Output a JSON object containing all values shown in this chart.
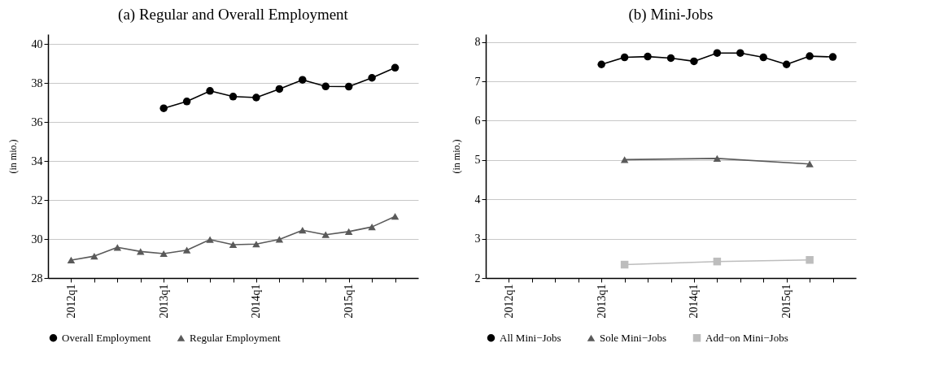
{
  "chart_data": [
    {
      "type": "line",
      "title": "(a) Regular and Overall Employment",
      "ylabel": "(in mio.)",
      "categories": [
        "2012q1",
        null,
        null,
        null,
        "2013q1",
        null,
        null,
        null,
        "2014q1",
        null,
        null,
        null,
        "2015q1",
        null,
        null
      ],
      "ylim": [
        28,
        40.5
      ],
      "yticks": [
        28,
        30,
        32,
        34,
        36,
        38,
        40
      ],
      "grid": "y",
      "legend": "bottom",
      "line_style": "solid",
      "series": [
        {
          "name": "Overall Employment",
          "color": "#000000",
          "marker": "circle",
          "values": [
            null,
            null,
            null,
            null,
            36.7,
            37.05,
            37.59,
            37.3,
            37.25,
            37.69,
            38.16,
            37.82,
            37.81,
            38.26,
            38.78
          ]
        },
        {
          "name": "Regular Employment",
          "color": "#5a5a5a",
          "marker": "triangle",
          "values": [
            28.92,
            29.12,
            29.57,
            29.36,
            29.25,
            29.43,
            29.97,
            29.71,
            29.74,
            29.98,
            30.45,
            30.22,
            30.38,
            30.62,
            31.16
          ]
        }
      ]
    },
    {
      "type": "line",
      "title": "(b) Mini-Jobs",
      "ylabel": "(in mio.)",
      "categories": [
        "2012q1",
        null,
        null,
        null,
        "2013q1",
        null,
        null,
        null,
        "2014q1",
        null,
        null,
        null,
        "2015q1",
        null,
        null
      ],
      "ylim": [
        2,
        8.2
      ],
      "yticks": [
        2,
        3,
        4,
        5,
        6,
        7,
        8
      ],
      "grid": "y",
      "legend": "bottom",
      "line_style": "solid",
      "series": [
        {
          "name": "All Mini−Jobs",
          "color": "#000000",
          "marker": "circle",
          "values": [
            null,
            null,
            null,
            null,
            7.43,
            7.61,
            7.63,
            7.59,
            7.51,
            7.72,
            7.72,
            7.61,
            7.43,
            7.64,
            7.62
          ]
        },
        {
          "name": "Sole Mini−Jobs",
          "color": "#5a5a5a",
          "marker": "triangle",
          "values": [
            null,
            null,
            null,
            null,
            null,
            5.01,
            null,
            null,
            null,
            5.04,
            null,
            null,
            null,
            4.9,
            null
          ]
        },
        {
          "name": "Add−on Mini−Jobs",
          "color": "#bdbdbd",
          "marker": "square",
          "values": [
            null,
            null,
            null,
            null,
            null,
            2.34,
            null,
            null,
            null,
            2.42,
            null,
            null,
            null,
            2.46,
            null
          ]
        }
      ]
    }
  ]
}
